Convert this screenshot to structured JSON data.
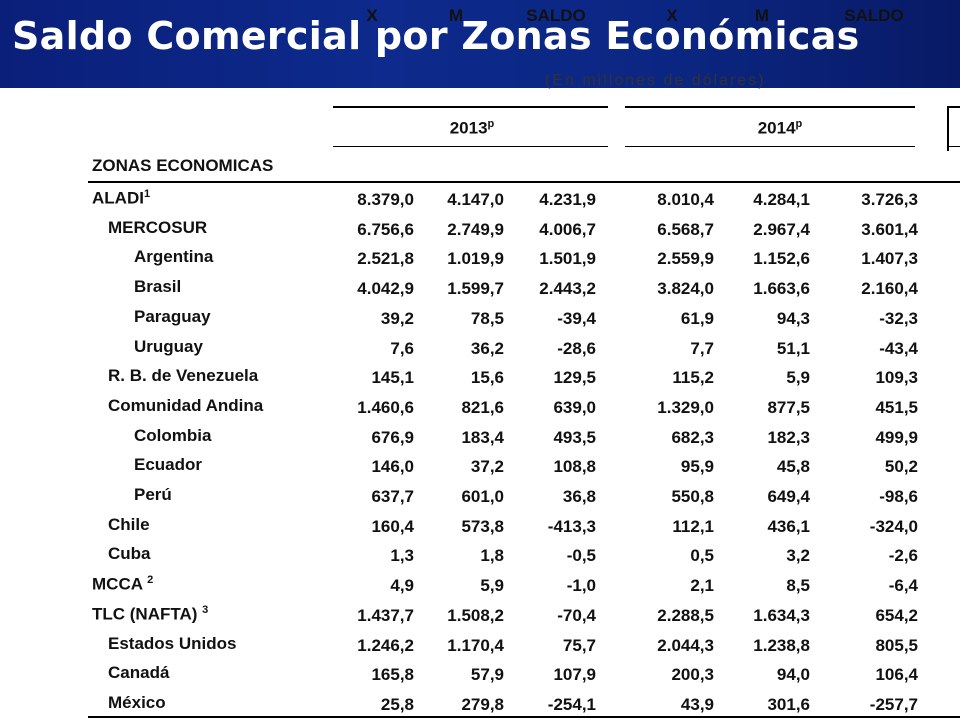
{
  "slide": {
    "title": "Saldo Comercial por Zonas Económicas",
    "subtitle": "(En millones de dólares)"
  },
  "table": {
    "years": [
      {
        "label": "2013",
        "mark": "p"
      },
      {
        "label": "2014",
        "mark": "p"
      }
    ],
    "columns": {
      "zone": "ZONAS ECONOMICAS",
      "x": "X",
      "m": "M",
      "saldo": "SALDO"
    },
    "rows": [
      {
        "zone": "ALADI",
        "note": "1",
        "level": 0,
        "v": [
          "8.379,0",
          "4.147,0",
          "4.231,9",
          "8.010,4",
          "4.284,1",
          "3.726,3"
        ]
      },
      {
        "zone": "MERCOSUR",
        "note": "",
        "level": 1,
        "v": [
          "6.756,6",
          "2.749,9",
          "4.006,7",
          "6.568,7",
          "2.967,4",
          "3.601,4"
        ]
      },
      {
        "zone": "Argentina",
        "note": "",
        "level": 2,
        "v": [
          "2.521,8",
          "1.019,9",
          "1.501,9",
          "2.559,9",
          "1.152,6",
          "1.407,3"
        ]
      },
      {
        "zone": "Brasil",
        "note": "",
        "level": 2,
        "v": [
          "4.042,9",
          "1.599,7",
          "2.443,2",
          "3.824,0",
          "1.663,6",
          "2.160,4"
        ]
      },
      {
        "zone": "Paraguay",
        "note": "",
        "level": 2,
        "v": [
          "39,2",
          "78,5",
          "-39,4",
          "61,9",
          "94,3",
          "-32,3"
        ]
      },
      {
        "zone": "Uruguay",
        "note": "",
        "level": 2,
        "v": [
          "7,6",
          "36,2",
          "-28,6",
          "7,7",
          "51,1",
          "-43,4"
        ]
      },
      {
        "zone": "R. B. de Venezuela",
        "note": "",
        "level": 1,
        "v": [
          "145,1",
          "15,6",
          "129,5",
          "115,2",
          "5,9",
          "109,3"
        ]
      },
      {
        "zone": "Comunidad Andina",
        "note": "",
        "level": 1,
        "v": [
          "1.460,6",
          "821,6",
          "639,0",
          "1.329,0",
          "877,5",
          "451,5"
        ]
      },
      {
        "zone": "Colombia",
        "note": "",
        "level": 2,
        "v": [
          "676,9",
          "183,4",
          "493,5",
          "682,3",
          "182,3",
          "499,9"
        ]
      },
      {
        "zone": "Ecuador",
        "note": "",
        "level": 2,
        "v": [
          "146,0",
          "37,2",
          "108,8",
          "95,9",
          "45,8",
          "50,2"
        ]
      },
      {
        "zone": "Perú",
        "note": "",
        "level": 2,
        "v": [
          "637,7",
          "601,0",
          "36,8",
          "550,8",
          "649,4",
          "-98,6"
        ]
      },
      {
        "zone": "Chile",
        "note": "",
        "level": 1,
        "v": [
          "160,4",
          "573,8",
          "-413,3",
          "112,1",
          "436,1",
          "-324,0"
        ]
      },
      {
        "zone": "Cuba",
        "note": "",
        "level": 1,
        "v": [
          "1,3",
          "1,8",
          "-0,5",
          "0,5",
          "3,2",
          "-2,6"
        ]
      },
      {
        "zone": "MCCA",
        "note": "2",
        "level": 0,
        "v": [
          "4,9",
          "5,9",
          "-1,0",
          "2,1",
          "8,5",
          "-6,4"
        ]
      },
      {
        "zone": "TLC (NAFTA)",
        "note": "3",
        "level": 0,
        "v": [
          "1.437,7",
          "1.508,2",
          "-70,4",
          "2.288,5",
          "1.634,3",
          "654,2"
        ]
      },
      {
        "zone": "Estados Unidos",
        "note": "",
        "level": 1,
        "v": [
          "1.246,2",
          "1.170,4",
          "75,7",
          "2.044,3",
          "1.238,8",
          "805,5"
        ]
      },
      {
        "zone": "Canadá",
        "note": "",
        "level": 1,
        "v": [
          "165,8",
          "57,9",
          "107,9",
          "200,3",
          "94,0",
          "106,4"
        ]
      },
      {
        "zone": "México",
        "note": "",
        "level": 1,
        "v": [
          "25,8",
          "279,8",
          "-254,1",
          "43,9",
          "301,6",
          "-257,7"
        ]
      }
    ]
  },
  "colors": {
    "banner": "#0d2a8c",
    "title": "#ffffff",
    "text": "#111111"
  }
}
